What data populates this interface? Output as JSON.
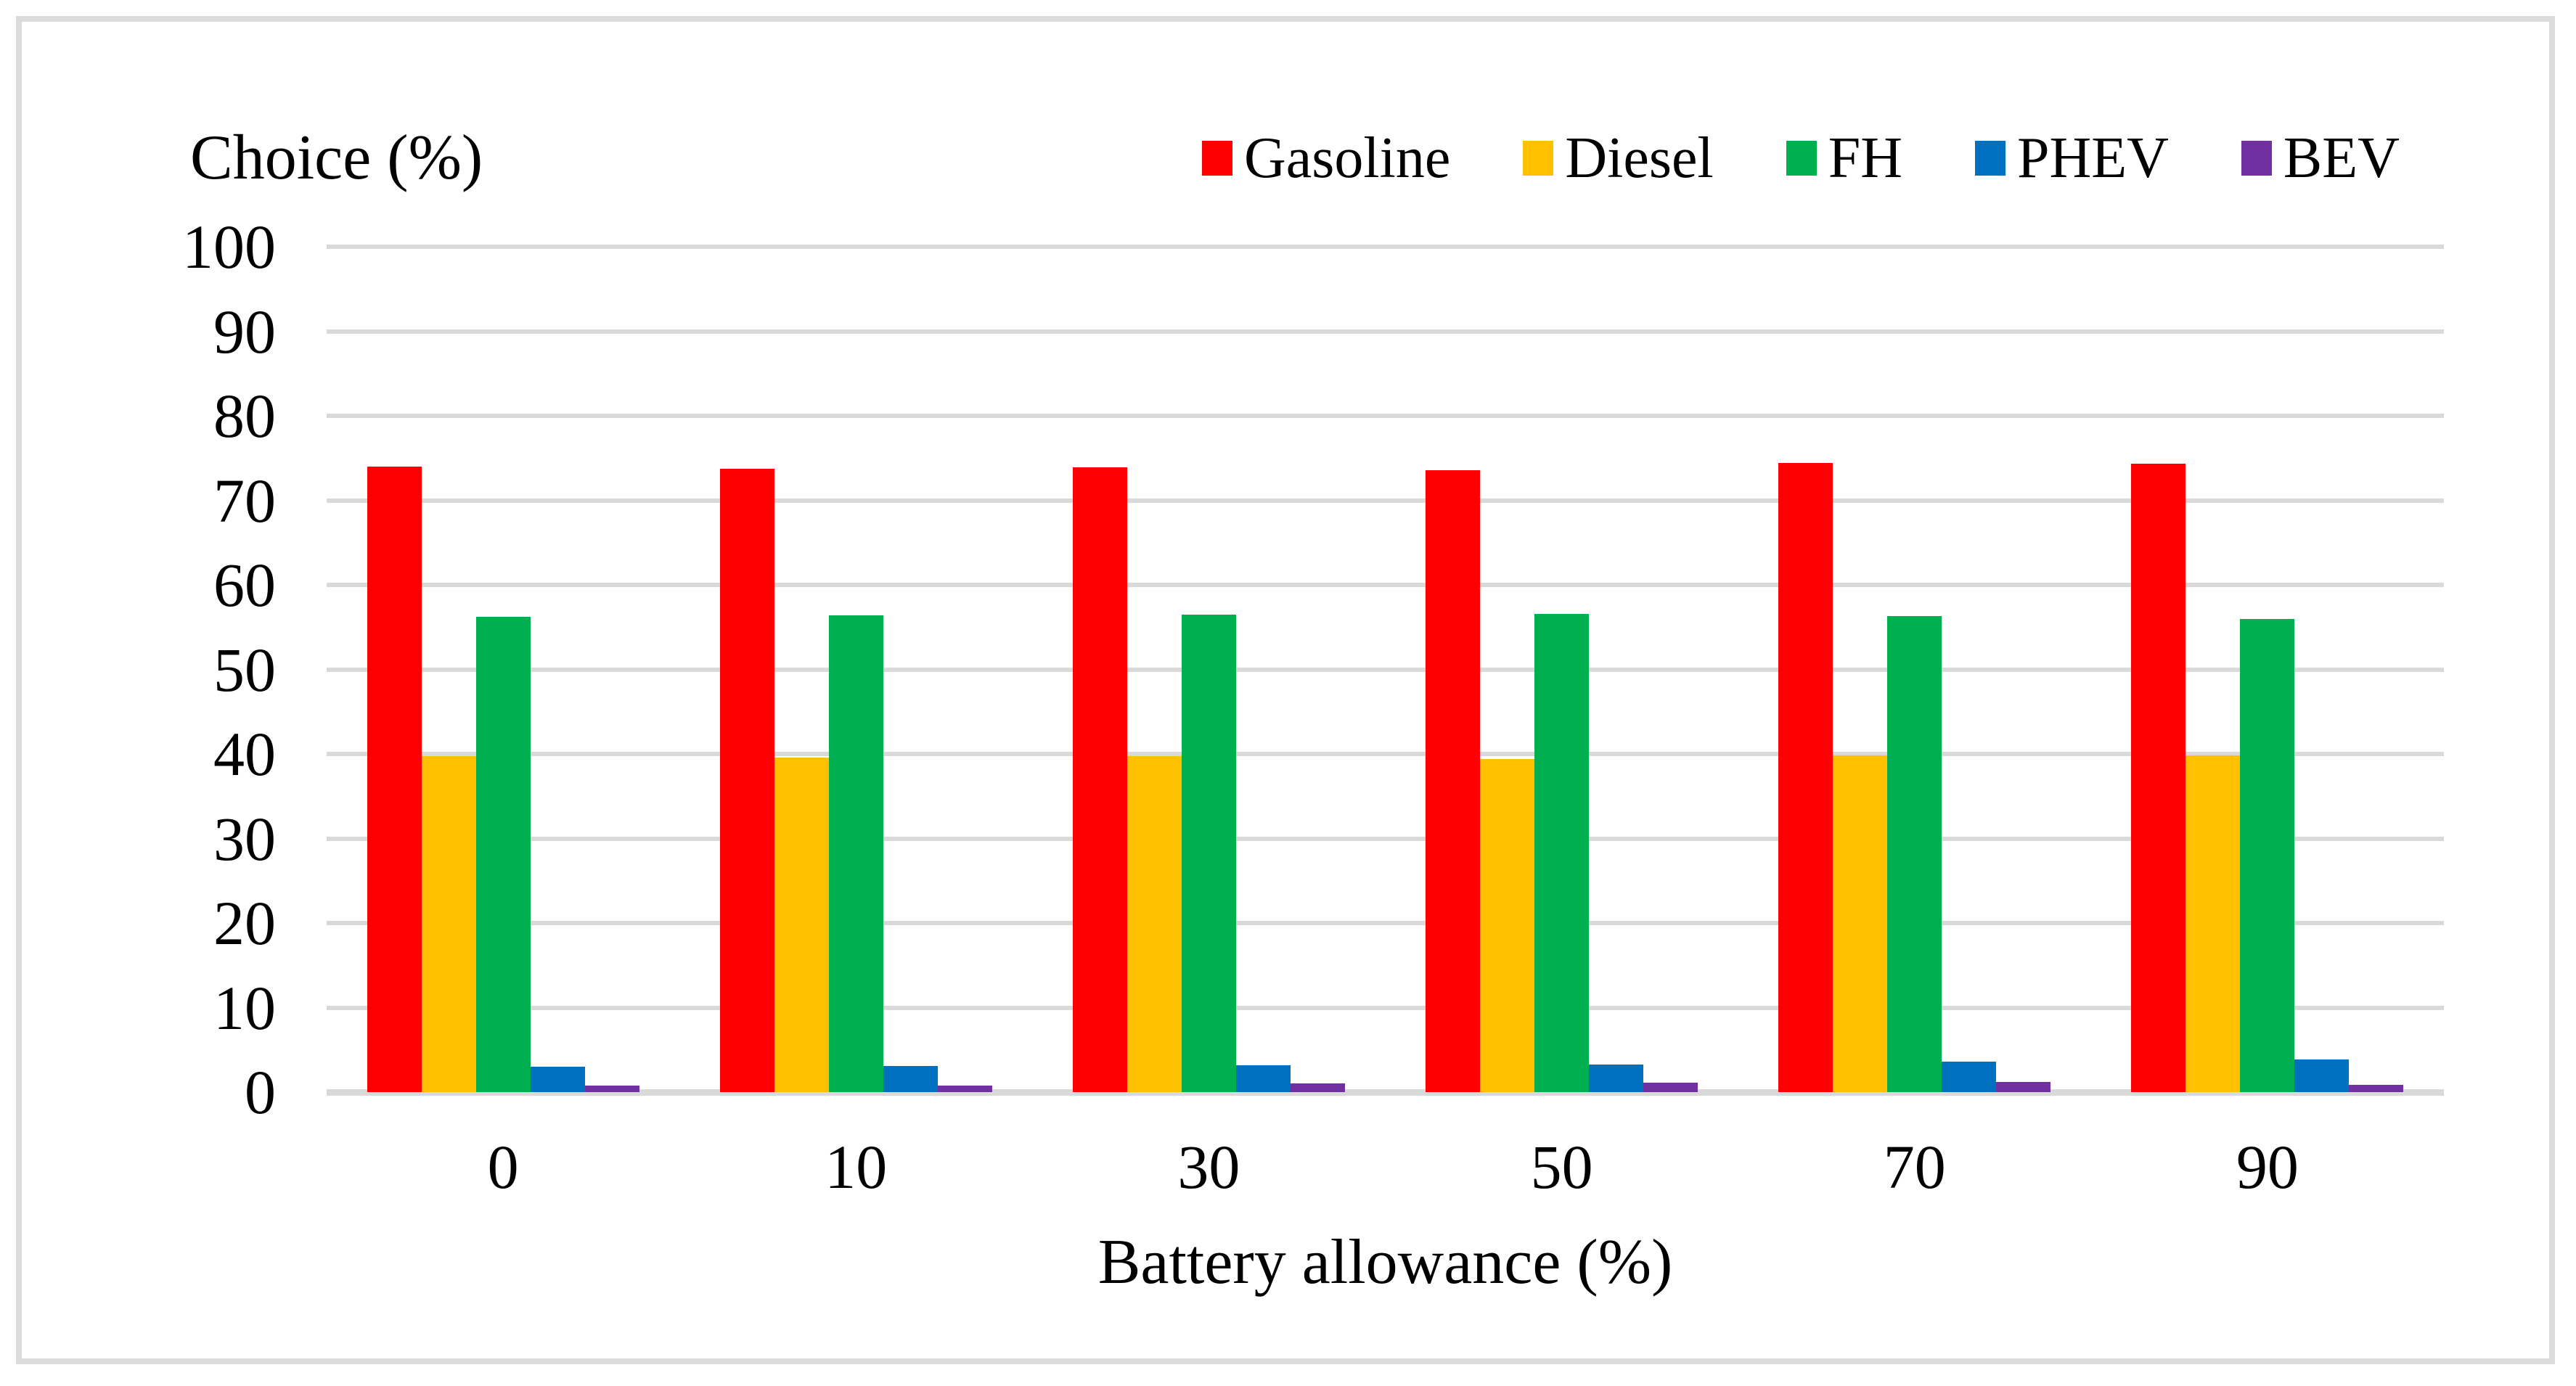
{
  "figure": {
    "border_color": "#DBDBDB",
    "background_color": "#FFFFFF",
    "gridline_color": "#D9D9D9",
    "axisline_color": "#D9D9D9",
    "text_color": "#000000"
  },
  "chart_data": {
    "type": "bar",
    "title": "",
    "ylabel": "Choice (%)",
    "xlabel": "Battery allowance (%)",
    "ylim": [
      0,
      100
    ],
    "yticks": [
      0,
      10,
      20,
      30,
      40,
      50,
      60,
      70,
      80,
      90,
      100
    ],
    "grid": true,
    "legend_position": "top-right",
    "categories": [
      "0",
      "10",
      "30",
      "50",
      "70",
      "90"
    ],
    "series": [
      {
        "name": "Gasoline",
        "color": "#FF0000",
        "values": [
          74.0,
          73.7,
          73.9,
          73.6,
          74.4,
          74.3
        ]
      },
      {
        "name": "Diesel",
        "color": "#FFC000",
        "values": [
          39.7,
          39.6,
          39.7,
          39.4,
          39.8,
          39.8
        ]
      },
      {
        "name": "FH",
        "color": "#00B050",
        "values": [
          56.2,
          56.4,
          56.5,
          56.6,
          56.3,
          56.0
        ]
      },
      {
        "name": "PHEV",
        "color": "#0070C0",
        "values": [
          3.0,
          3.1,
          3.2,
          3.3,
          3.6,
          3.9
        ]
      },
      {
        "name": "BEV",
        "color": "#7030A0",
        "values": [
          0.8,
          0.8,
          1.0,
          1.1,
          1.2,
          0.9
        ]
      }
    ]
  }
}
